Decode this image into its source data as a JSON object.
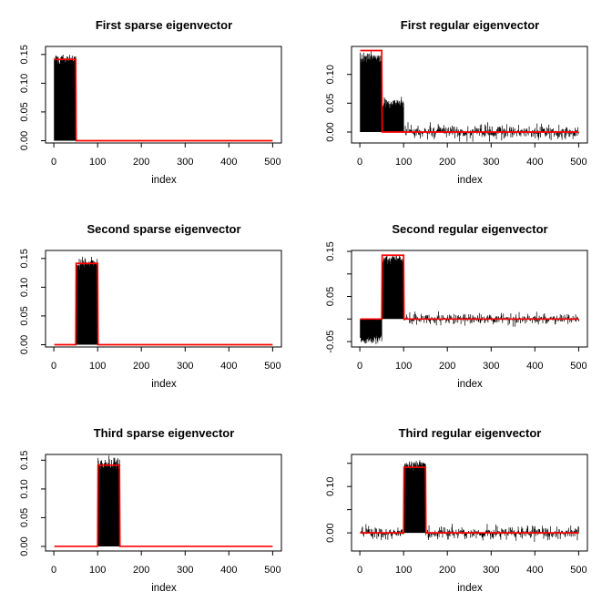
{
  "figure": {
    "description": "3x2 grid of R base plots comparing sparse and regular PCA eigenvectors",
    "background": "#ffffff",
    "axis_color": "#000000",
    "data_color": "#000000",
    "truth_color": "#ff0000"
  },
  "chart_data": {
    "type": "line",
    "style": "R type='h' vertical-line series with red step overlay of true eigenvector",
    "n_points": 500,
    "x": {
      "label": "index",
      "domain": [
        1,
        500
      ],
      "ticks": [
        0,
        100,
        200,
        300,
        400,
        500
      ],
      "view": [
        -19,
        520
      ]
    },
    "truth_value": 0.1414,
    "red_color": "#ff0000",
    "black_color": "#000000",
    "panels": [
      {
        "title": "First sparse eigenvector",
        "xlabel": "index",
        "ylim": [
          -0.004,
          0.164
        ],
        "yticks": [
          {
            "v": 0.0,
            "label": "0.00"
          },
          {
            "v": 0.05,
            "label": "0.05"
          },
          {
            "v": 0.1,
            "label": "0.10"
          },
          {
            "v": 0.15,
            "label": "0.15"
          }
        ],
        "black_segments": [
          {
            "from": 1,
            "to": 50,
            "mean": 0.1425,
            "sd": 0.004
          },
          {
            "from": 51,
            "to": 500,
            "mean": 0,
            "sd": 0
          }
        ],
        "red_truth": {
          "support": [
            1,
            50
          ],
          "value": 0.1414,
          "baseline": 0
        },
        "seed": 101
      },
      {
        "title": "First regular eigenvector",
        "xlabel": "index",
        "ylim": [
          -0.019,
          0.1485
        ],
        "yticks": [
          {
            "v": 0.0,
            "label": "0.00"
          },
          {
            "v": 0.05,
            "label": "0.05"
          },
          {
            "v": 0.1,
            "label": "0.10"
          }
        ],
        "black_segments": [
          {
            "from": 1,
            "to": 50,
            "mean": 0.129,
            "sd": 0.0045
          },
          {
            "from": 51,
            "to": 100,
            "mean": 0.052,
            "sd": 0.0045
          },
          {
            "from": 101,
            "to": 500,
            "mean": 0,
            "sd": 0.0065
          }
        ],
        "red_truth": {
          "support": [
            1,
            50
          ],
          "value": 0.1414,
          "baseline": 0
        },
        "seed": 202
      },
      {
        "title": "Second sparse eigenvector",
        "xlabel": "index",
        "ylim": [
          -0.004,
          0.164
        ],
        "yticks": [
          {
            "v": 0.0,
            "label": "0.00"
          },
          {
            "v": 0.05,
            "label": "0.05"
          },
          {
            "v": 0.1,
            "label": "0.10"
          },
          {
            "v": 0.15,
            "label": "0.15"
          }
        ],
        "black_segments": [
          {
            "from": 1,
            "to": 50,
            "mean": 0,
            "sd": 0
          },
          {
            "from": 51,
            "to": 100,
            "mean": 0.1425,
            "sd": 0.0045
          },
          {
            "from": 101,
            "to": 500,
            "mean": 0,
            "sd": 0
          }
        ],
        "red_truth": {
          "support": [
            51,
            100
          ],
          "value": 0.1414,
          "baseline": 0
        },
        "seed": 303
      },
      {
        "title": "Second regular eigenvector",
        "xlabel": "index",
        "ylim": [
          -0.062,
          0.152
        ],
        "yticks": [
          {
            "v": -0.05,
            "label": "-0.05"
          },
          {
            "v": 0.0,
            "label": ""
          },
          {
            "v": 0.05,
            "label": "0.05"
          },
          {
            "v": 0.1,
            "label": ""
          },
          {
            "v": 0.15,
            "label": "0.15"
          }
        ],
        "black_segments": [
          {
            "from": 1,
            "to": 50,
            "mean": -0.047,
            "sd": 0.0045
          },
          {
            "from": 51,
            "to": 100,
            "mean": 0.134,
            "sd": 0.0045
          },
          {
            "from": 101,
            "to": 500,
            "mean": 0,
            "sd": 0.0065
          }
        ],
        "red_truth": {
          "support": [
            51,
            100
          ],
          "value": 0.1414,
          "baseline": 0
        },
        "seed": 404
      },
      {
        "title": "Third sparse eigenvector",
        "xlabel": "index",
        "ylim": [
          -0.008,
          0.16
        ],
        "yticks": [
          {
            "v": 0.0,
            "label": "0.00"
          },
          {
            "v": 0.05,
            "label": "0.05"
          },
          {
            "v": 0.1,
            "label": "0.10"
          },
          {
            "v": 0.15,
            "label": "0.15"
          }
        ],
        "black_segments": [
          {
            "from": 1,
            "to": 100,
            "mean": 0,
            "sd": 0
          },
          {
            "from": 101,
            "to": 150,
            "mean": 0.1445,
            "sd": 0.0055
          },
          {
            "from": 151,
            "to": 500,
            "mean": 0,
            "sd": 0
          }
        ],
        "red_truth": {
          "support": [
            101,
            150
          ],
          "value": 0.1414,
          "baseline": 0
        },
        "seed": 505
      },
      {
        "title": "Third regular eigenvector",
        "xlabel": "index",
        "ylim": [
          -0.039,
          0.169
        ],
        "yticks": [
          {
            "v": 0.0,
            "label": "0.00"
          },
          {
            "v": 0.05,
            "label": ""
          },
          {
            "v": 0.1,
            "label": "0.10"
          },
          {
            "v": 0.15,
            "label": ""
          }
        ],
        "black_segments": [
          {
            "from": 1,
            "to": 100,
            "mean": 0,
            "sd": 0.0075
          },
          {
            "from": 101,
            "to": 150,
            "mean": 0.147,
            "sd": 0.0055
          },
          {
            "from": 151,
            "to": 500,
            "mean": 0,
            "sd": 0.0075
          }
        ],
        "red_truth": {
          "support": [
            101,
            150
          ],
          "value": 0.1414,
          "baseline": 0
        },
        "seed": 606
      }
    ]
  }
}
